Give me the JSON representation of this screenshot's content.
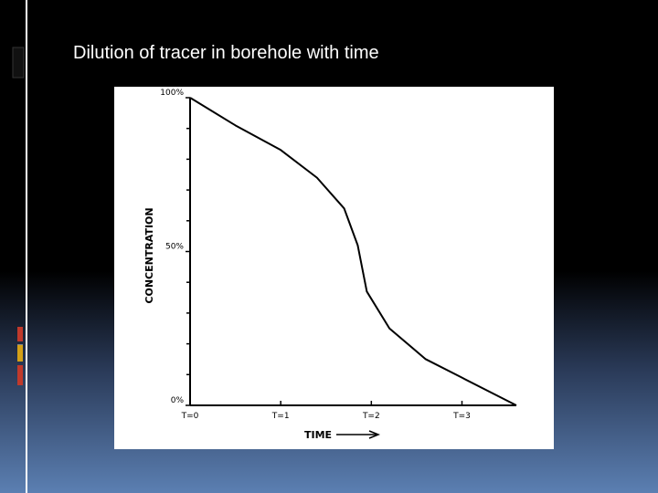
{
  "chart_data": {
    "type": "line",
    "title": "Dilution of tracer in borehole with time",
    "xlabel": "TIME",
    "ylabel": "CONCENTRATION",
    "x": [
      0,
      0.5,
      1,
      1.4,
      1.7,
      1.85,
      1.95,
      2.2,
      2.6,
      3,
      3.6
    ],
    "series": [
      {
        "color": "#000000",
        "values": [
          100,
          91,
          83,
          74,
          64,
          52,
          37,
          25,
          15,
          9,
          0
        ]
      }
    ],
    "xlim": [
      0,
      3.6
    ],
    "ylim": [
      0,
      100
    ],
    "xticks": [
      {
        "value": 0,
        "label": "T=0"
      },
      {
        "value": 1,
        "label": "T=1"
      },
      {
        "value": 2,
        "label": "T=2"
      },
      {
        "value": 3,
        "label": "T=3"
      }
    ],
    "yticks": [
      {
        "value": 0,
        "label": "0%"
      },
      {
        "value": 50,
        "label": "50%"
      },
      {
        "value": 100,
        "label": "100%"
      }
    ],
    "yminor_ticks": [
      10,
      20,
      30,
      40,
      60,
      70,
      80,
      90
    ]
  }
}
